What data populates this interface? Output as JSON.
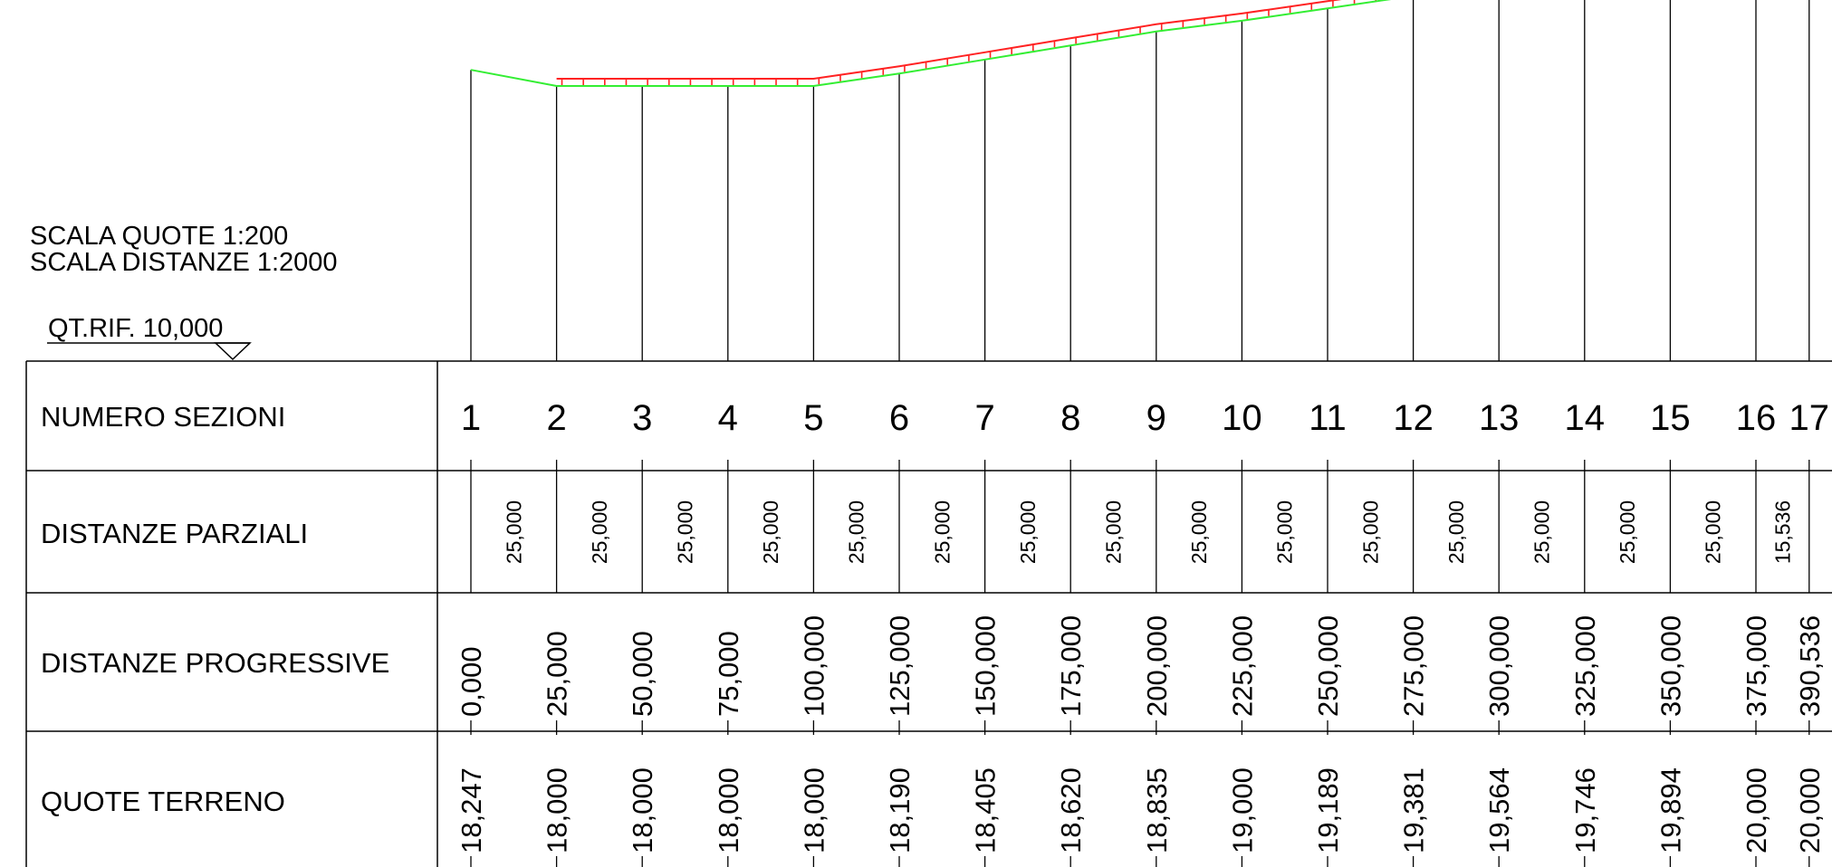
{
  "scale": {
    "vertical": "SCALA QUOTE 1:200",
    "horizontal": "SCALA DISTANZE 1:2000"
  },
  "reference": {
    "label": "QT.RIF. 10,000",
    "elevation": 10.0
  },
  "rows": {
    "sections": "NUMERO SEZIONI",
    "partial": "DISTANZE PARZIALI",
    "progressive": "DISTANZE PROGRESSIVE",
    "ground": "QUOTE TERRENO"
  },
  "colors": {
    "ground_line": "#33ee33",
    "project_line": "#ff2222",
    "lines": "#000000"
  },
  "sections": [
    {
      "num": "1",
      "progressive": "0,000",
      "ground": "18,247",
      "dist": 0.0,
      "elev": 18.247
    },
    {
      "num": "2",
      "progressive": "25,000",
      "ground": "18,000",
      "dist": 25.0,
      "elev": 18.0
    },
    {
      "num": "3",
      "progressive": "50,000",
      "ground": "18,000",
      "dist": 50.0,
      "elev": 18.0
    },
    {
      "num": "4",
      "progressive": "75,000",
      "ground": "18,000",
      "dist": 75.0,
      "elev": 18.0
    },
    {
      "num": "5",
      "progressive": "100,000",
      "ground": "18,000",
      "dist": 100.0,
      "elev": 18.0
    },
    {
      "num": "6",
      "progressive": "125,000",
      "ground": "18,190",
      "dist": 125.0,
      "elev": 18.19
    },
    {
      "num": "7",
      "progressive": "150,000",
      "ground": "18,405",
      "dist": 150.0,
      "elev": 18.405
    },
    {
      "num": "8",
      "progressive": "175,000",
      "ground": "18,620",
      "dist": 175.0,
      "elev": 18.62
    },
    {
      "num": "9",
      "progressive": "200,000",
      "ground": "18,835",
      "dist": 200.0,
      "elev": 18.835
    },
    {
      "num": "10",
      "progressive": "225,000",
      "ground": "19,000",
      "dist": 225.0,
      "elev": 19.0
    },
    {
      "num": "11",
      "progressive": "250,000",
      "ground": "19,189",
      "dist": 250.0,
      "elev": 19.189
    },
    {
      "num": "12",
      "progressive": "275,000",
      "ground": "19,381",
      "dist": 275.0,
      "elev": 19.381
    },
    {
      "num": "13",
      "progressive": "300,000",
      "ground": "19,564",
      "dist": 300.0,
      "elev": 19.564
    },
    {
      "num": "14",
      "progressive": "325,000",
      "ground": "19,746",
      "dist": 325.0,
      "elev": 19.746
    },
    {
      "num": "15",
      "progressive": "350,000",
      "ground": "19,894",
      "dist": 350.0,
      "elev": 19.894
    },
    {
      "num": "16",
      "progressive": "375,000",
      "ground": "20,000",
      "dist": 375.0,
      "elev": 20.0
    },
    {
      "num": "17",
      "progressive": "390,536",
      "ground": "20,000",
      "dist": 390.536,
      "elev": 20.0
    }
  ],
  "partials": [
    "25,000",
    "25,000",
    "25,000",
    "25,000",
    "25,000",
    "25,000",
    "25,000",
    "25,000",
    "25,000",
    "25,000",
    "25,000",
    "25,000",
    "25,000",
    "25,000",
    "25,000",
    "15,536"
  ]
}
